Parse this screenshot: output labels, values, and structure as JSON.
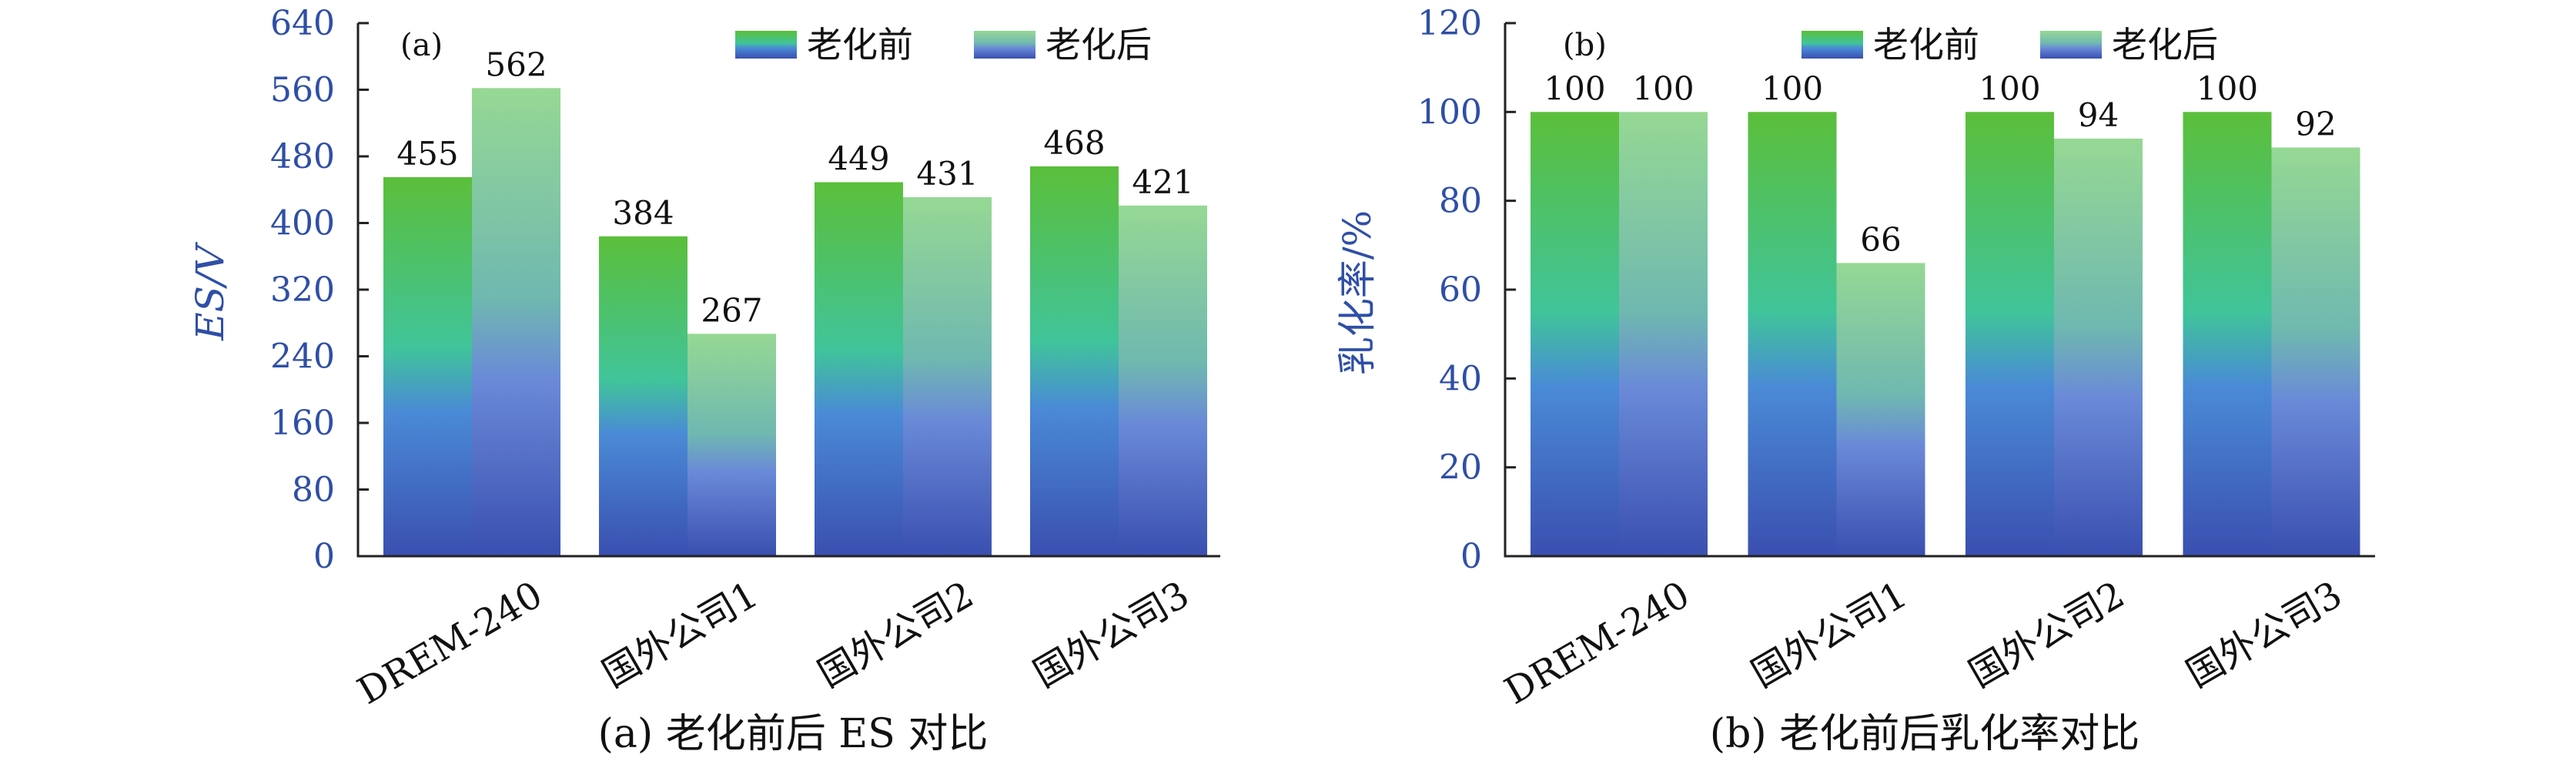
{
  "colors": {
    "axis_text": "#2f4fa6",
    "before_top": "#5bbf3a",
    "after_top": "#93d693",
    "mid": "#3fc19a",
    "bottom": "#3a4fb0"
  },
  "legend": {
    "before": "老化前",
    "after": "老化后"
  },
  "chart_data": [
    {
      "type": "bar",
      "panel_label": "(a)",
      "ylabel": "ES/V",
      "caption": "(a) 老化前后 ES 对比",
      "categories": [
        "DREM-240",
        "国外公司1",
        "国外公司2",
        "国外公司3"
      ],
      "series": [
        {
          "name": "老化前",
          "values": [
            455,
            384,
            449,
            468
          ]
        },
        {
          "name": "老化后",
          "values": [
            562,
            267,
            431,
            421
          ]
        }
      ],
      "ylim": [
        0,
        640
      ],
      "yticks": [
        0,
        80,
        160,
        240,
        320,
        400,
        480,
        560,
        640
      ],
      "legend_position": "top-right",
      "grid": false
    },
    {
      "type": "bar",
      "panel_label": "(b)",
      "ylabel": "乳化率/%",
      "caption": "(b) 老化前后乳化率对比",
      "categories": [
        "DREM-240",
        "国外公司1",
        "国外公司2",
        "国外公司3"
      ],
      "series": [
        {
          "name": "老化前",
          "values": [
            100,
            100,
            100,
            100
          ]
        },
        {
          "name": "老化后",
          "values": [
            100,
            66,
            94,
            92
          ]
        }
      ],
      "ylim": [
        0,
        120
      ],
      "yticks": [
        0,
        20,
        40,
        60,
        80,
        100,
        120
      ],
      "legend_position": "top-right",
      "grid": false
    }
  ]
}
